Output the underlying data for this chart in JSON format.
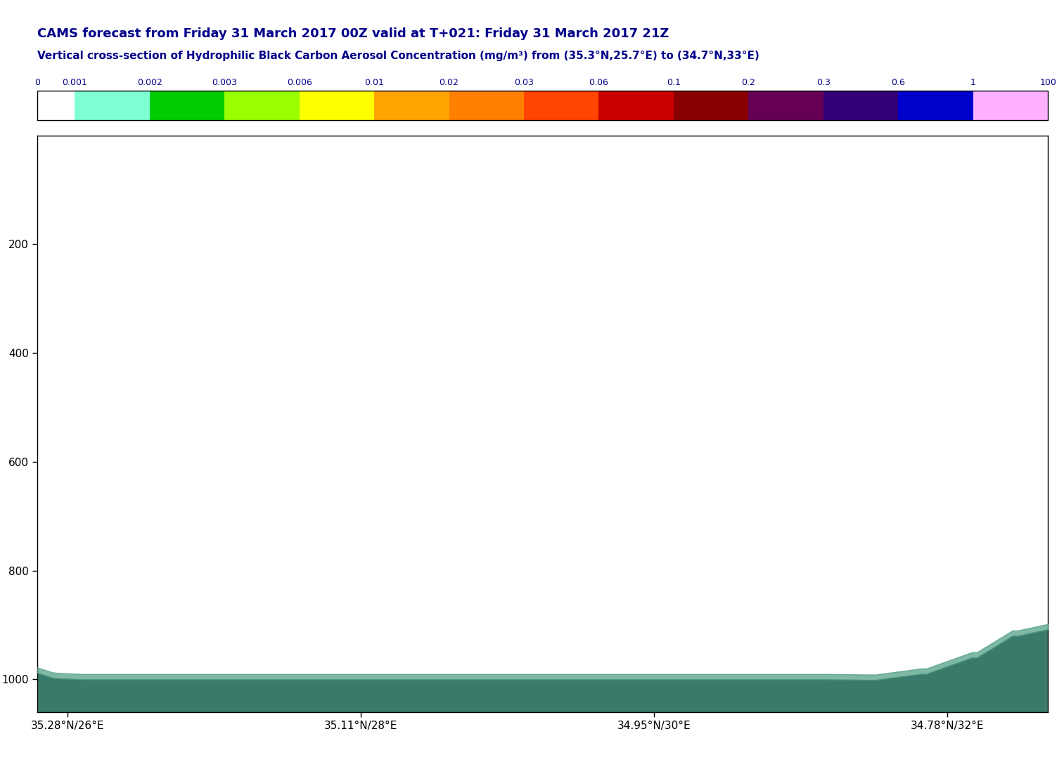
{
  "title_line1": "CAMS forecast from Friday 31 March 2017 00Z valid at T+021: Friday 31 March 2017 21Z",
  "title_line2": "Vertical cross-section of Hydrophilic Black Carbon Aerosol Concentration (mg/m³) from (35.3°N,25.7°E) to (34.7°N,33°E)",
  "title_color": "#00008B",
  "colorbar_colors": [
    "#FFFFFF",
    "#7FFFD4",
    "#00CC00",
    "#99FF00",
    "#FFFF00",
    "#FFA500",
    "#FF8000",
    "#FF4500",
    "#CC0000",
    "#880000",
    "#660055",
    "#330077",
    "#0000CC",
    "#FFB0FF"
  ],
  "colorbar_tick_labels": [
    "0",
    "0.001",
    "0.002",
    "0.003",
    "0.006",
    "0.01",
    "0.02",
    "0.03",
    "0.06",
    "0.1",
    "0.2",
    "0.3",
    "0.6",
    "1",
    "100"
  ],
  "yticks": [
    200,
    400,
    600,
    800,
    1000
  ],
  "xtick_labels": [
    "35.28°N/26°E",
    "35.11°N/28°E",
    "34.95°N/30°E",
    "34.78°N/32°E"
  ],
  "background_color": "#FFFFFF",
  "fill_color_dark": "#3A7A6A",
  "fill_color_light": "#4A9A80",
  "plot_background": "#FFFFFF",
  "n_points": 200
}
